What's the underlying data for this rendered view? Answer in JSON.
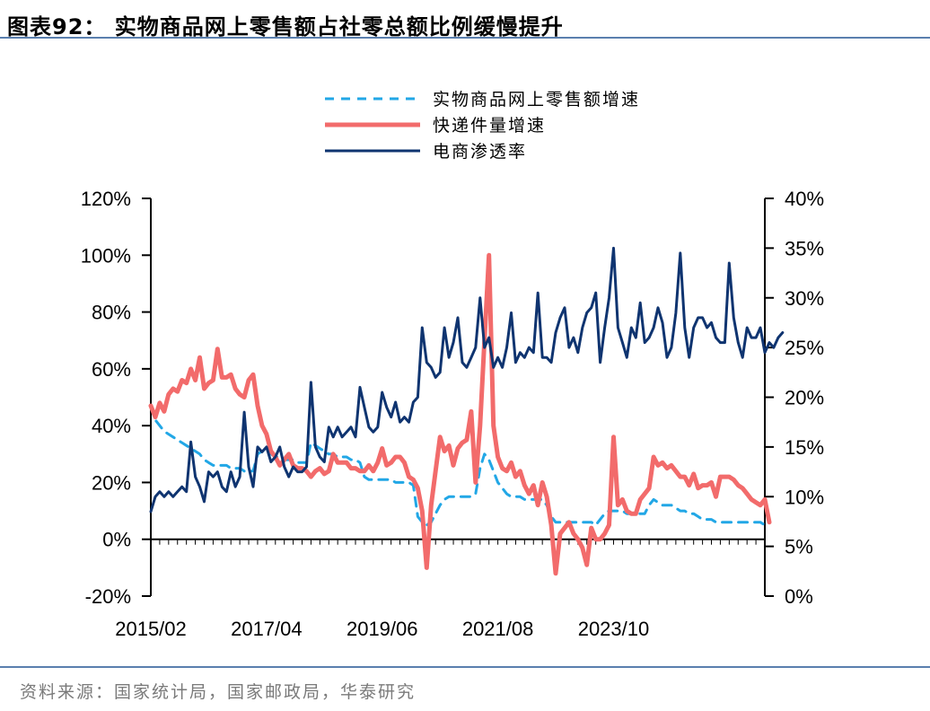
{
  "title": "图表92：  实物商品网上零售额占社零总额比例缓慢提升",
  "source": "资料来源：国家统计局，国家邮政局，华泰研究",
  "colors": {
    "online": "#22a7e6",
    "express": "#f26b6b",
    "penetration": "#0f3470",
    "rule": "#5a7fae"
  },
  "chart_data": {
    "type": "line",
    "x_labels": [
      "2015/02",
      "2017/04",
      "2019/06",
      "2021/08",
      "2023/10"
    ],
    "left_axis": {
      "ticks": [
        "-20%",
        "0%",
        "20%",
        "40%",
        "60%",
        "80%",
        "100%",
        "120%"
      ],
      "ylim": [
        -20,
        120
      ]
    },
    "right_axis": {
      "ticks": [
        "0%",
        "5%",
        "10%",
        "15%",
        "20%",
        "25%",
        "30%",
        "35%",
        "40%"
      ],
      "ylim": [
        0,
        40
      ]
    },
    "series": [
      {
        "name": "实物商品网上零售额增速",
        "axis": "left",
        "style": "dashed",
        "values": [
          47,
          42,
          40,
          38,
          37,
          36,
          35,
          34,
          33,
          32,
          31,
          30,
          28,
          27,
          26,
          26,
          26,
          26,
          25,
          25,
          25,
          24,
          24,
          24,
          30,
          31,
          31,
          30,
          29,
          29,
          28,
          28,
          28,
          27,
          27,
          27,
          34,
          33,
          32,
          31,
          30,
          30,
          29,
          29,
          29,
          28,
          28,
          27,
          22,
          21,
          21,
          21,
          21,
          21,
          21,
          20,
          20,
          20,
          20,
          19,
          8,
          6,
          5,
          6,
          9,
          12,
          14,
          15,
          15,
          15,
          15,
          15,
          15,
          16,
          25,
          30,
          28,
          24,
          20,
          18,
          16,
          15,
          15,
          15,
          14,
          14,
          14,
          14,
          14,
          12,
          8,
          6,
          6,
          6,
          6,
          6,
          6,
          6,
          6,
          6,
          5,
          7,
          9,
          10,
          10,
          10,
          10,
          9,
          9,
          9,
          9,
          9,
          12,
          14,
          13,
          12,
          12,
          12,
          11,
          10,
          10,
          9,
          9,
          8,
          7,
          7,
          7,
          6,
          6,
          6,
          6,
          6,
          6,
          6,
          6,
          6,
          6,
          6,
          5
        ]
      },
      {
        "name": "快递件量增速",
        "axis": "left",
        "style": "solid",
        "values": [
          47,
          43,
          48,
          45,
          51,
          53,
          52,
          56,
          55,
          60,
          56,
          64,
          53,
          55,
          56,
          67,
          57,
          57,
          58,
          53,
          51,
          50,
          56,
          58,
          47,
          40,
          37,
          31,
          29,
          26,
          28,
          30,
          26,
          25,
          25,
          24,
          22,
          24,
          25,
          23,
          24,
          30,
          27,
          27,
          27,
          25,
          25,
          24,
          24,
          26,
          24,
          27,
          32,
          26,
          27,
          29,
          29,
          27,
          22,
          21,
          18,
          10,
          -10,
          12,
          24,
          36,
          31,
          33,
          26,
          32,
          34,
          35,
          45,
          20,
          40,
          70,
          100,
          40,
          29,
          25,
          24,
          27,
          22,
          24,
          19,
          16,
          19,
          12,
          20,
          15,
          5,
          -12,
          2,
          4,
          6,
          2,
          0,
          -3,
          -9,
          4,
          0,
          0,
          2,
          5,
          36,
          12,
          14,
          10,
          9,
          9,
          14,
          16,
          18,
          29,
          26,
          27,
          25,
          26,
          24,
          22,
          22,
          19,
          23,
          18,
          19,
          19,
          20,
          15,
          22,
          22,
          22,
          21,
          19,
          18,
          16,
          14,
          13,
          12,
          14,
          6
        ]
      },
      {
        "name": "电商渗透率",
        "axis": "right",
        "style": "solid",
        "values": [
          8.5,
          10,
          10.5,
          10,
          10.5,
          10,
          10.5,
          11,
          10.5,
          15.5,
          12,
          11,
          9.5,
          12.5,
          12,
          12.5,
          11,
          10.5,
          12.5,
          11,
          12,
          18.5,
          13,
          11,
          15,
          14.5,
          15,
          13.5,
          14,
          15,
          13,
          12,
          13,
          12.5,
          12.5,
          13,
          21.5,
          15,
          14,
          13.5,
          17,
          16,
          17,
          16,
          16.5,
          17,
          16,
          21,
          19,
          17,
          16.5,
          17,
          20.5,
          19,
          18,
          19.5,
          17.5,
          18,
          17.5,
          19.5,
          20,
          27,
          23.5,
          23,
          22,
          22.5,
          27,
          24,
          25.5,
          28,
          23.5,
          23,
          24,
          25,
          30,
          25,
          26,
          23,
          24,
          23,
          25,
          28.5,
          23.5,
          24.5,
          24,
          25,
          24.5,
          30.5,
          24,
          24,
          23.5,
          26.5,
          28,
          29,
          25,
          26,
          24.5,
          27,
          28.5,
          29,
          30.5,
          23.5,
          27,
          30,
          35,
          27,
          25.5,
          24,
          27,
          26,
          29.5,
          25.5,
          26,
          27,
          29,
          27.5,
          24,
          25,
          28.5,
          34.5,
          27,
          24,
          27,
          28,
          28,
          27,
          27.5,
          26,
          25.5,
          25.5,
          33.5,
          28,
          25.5,
          24,
          27,
          26,
          26,
          27,
          24.5,
          25.5,
          25,
          26,
          26.5
        ]
      }
    ]
  }
}
